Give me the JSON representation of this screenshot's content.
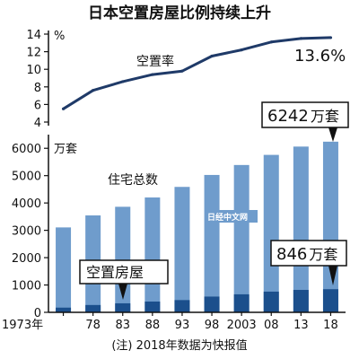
{
  "chart_data": {
    "type": "bar",
    "title": "日本空置房屋比例持续上升",
    "note": "(注) 2018年数据为快报值",
    "watermark": "日经中文网",
    "categories": [
      "1973年",
      "78",
      "83",
      "88",
      "93",
      "98",
      "2003",
      "08",
      "13",
      "18"
    ],
    "rate": {
      "type": "line",
      "name": "空置率",
      "unit": "%",
      "ylim": [
        4,
        14
      ],
      "yticks": [
        "4",
        "6",
        "8",
        "10",
        "12",
        "14"
      ],
      "values": [
        5.5,
        7.6,
        8.6,
        9.4,
        9.8,
        11.5,
        12.2,
        13.1,
        13.5,
        13.6
      ],
      "end_label": "13.6%",
      "color": "#1f3a68"
    },
    "housing": {
      "unit": "万套",
      "ylim": [
        0,
        6500
      ],
      "yticks": [
        "0",
        "1000",
        "2000",
        "3000",
        "4000",
        "5000",
        "6000"
      ],
      "series": [
        {
          "name": "住宅总数",
          "color": "#6f9ccc",
          "values": [
            3106,
            3545,
            3861,
            4201,
            4588,
            5025,
            5389,
            5759,
            6063,
            6242
          ]
        },
        {
          "name": "空置房屋",
          "color": "#1b4f8c",
          "values": [
            172,
            268,
            330,
            394,
            448,
            576,
            659,
            757,
            820,
            846
          ]
        }
      ],
      "callouts": {
        "total": "6242",
        "vacant": "846",
        "unit": "万套"
      }
    }
  }
}
